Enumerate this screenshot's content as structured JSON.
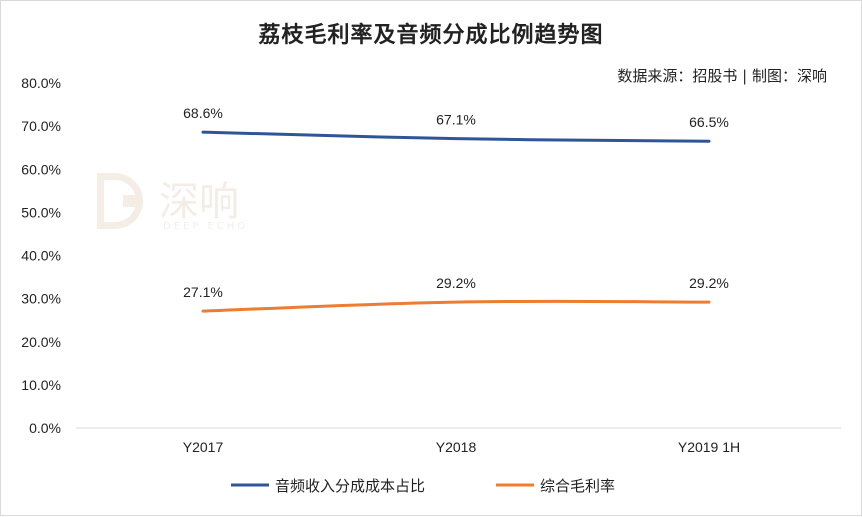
{
  "header": {
    "title": "荔枝毛利率及音频分成比例趋势图",
    "source": "数据来源：招股书 | 制图：深响"
  },
  "watermark": {
    "cn": "深响",
    "en": "DEEP ECHO"
  },
  "chart_data": {
    "type": "line",
    "title": "荔枝毛利率及音频分成比例趋势图",
    "categories": [
      "Y2017",
      "Y2018",
      "Y2019 1H"
    ],
    "ylim": [
      0,
      80
    ],
    "yticks": [
      "0.0%",
      "10.0%",
      "20.0%",
      "30.0%",
      "40.0%",
      "50.0%",
      "60.0%",
      "70.0%",
      "80.0%"
    ],
    "grid": false,
    "legend_position": "bottom",
    "series": [
      {
        "name": "音频收入分成成本占比",
        "values": [
          68.6,
          67.1,
          66.5
        ],
        "labels": [
          "68.6%",
          "67.1%",
          "66.5%"
        ],
        "color": "#2f5597"
      },
      {
        "name": "综合毛利率",
        "values": [
          27.1,
          29.2,
          29.2
        ],
        "labels": [
          "27.1%",
          "29.2%",
          "29.2%"
        ],
        "color": "#ed7d31"
      }
    ]
  }
}
